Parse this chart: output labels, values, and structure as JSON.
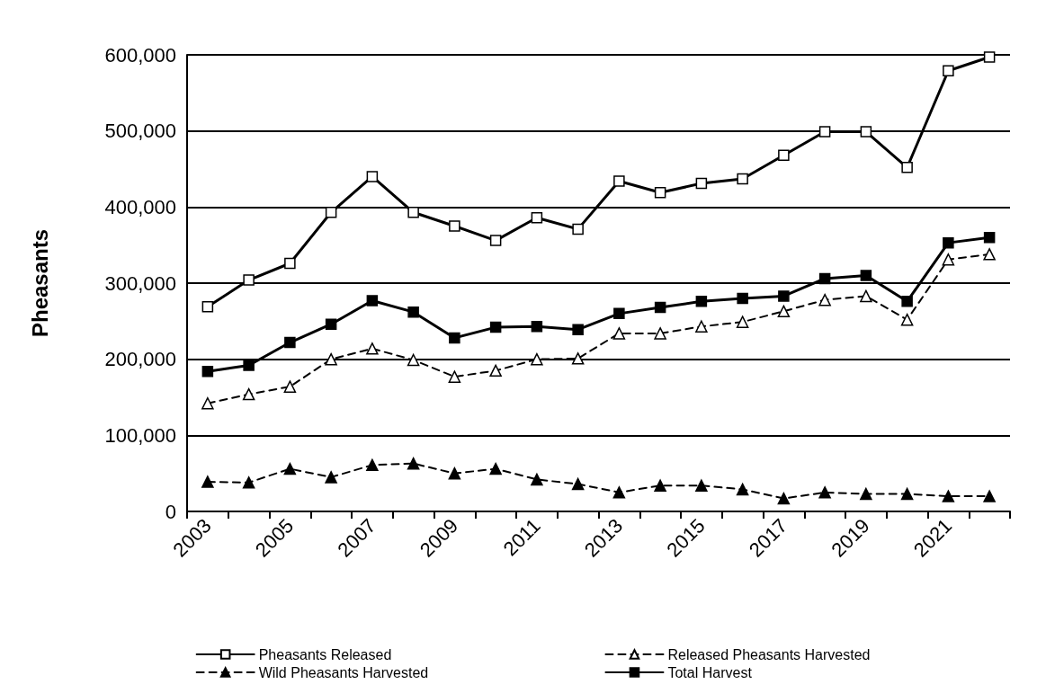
{
  "chart_data": {
    "type": "line",
    "ylabel": "Pheasants",
    "categories": [
      "2003",
      null,
      "2005",
      null,
      "2007",
      null,
      "2009",
      null,
      "2011",
      null,
      "2013",
      null,
      "2015",
      null,
      "2017",
      null,
      "2019",
      null,
      "2021",
      null
    ],
    "ylim": [
      0,
      600000
    ],
    "yticks": [
      {
        "value": 0,
        "label": "0"
      },
      {
        "value": 100000,
        "label": "100,000"
      },
      {
        "value": 200000,
        "label": "200,000"
      },
      {
        "value": 300000,
        "label": "300,000"
      },
      {
        "value": 400000,
        "label": "400,000"
      },
      {
        "value": 500000,
        "label": "500,000"
      },
      {
        "value": 600000,
        "label": "600,000"
      }
    ],
    "grid": "y",
    "legend": "bottom",
    "series": [
      {
        "name": "Pheasants Released",
        "color": "#000000",
        "marker": "square",
        "colors": [
          "#ffffff",
          "#ffffff",
          "#ffffff",
          "#ffffff",
          "#ffffff",
          "#ffffff",
          "#ffffff",
          "#ffffff",
          "#ffffff",
          "#ffffff",
          "#ffffff",
          "#ffffff",
          "#ffffff",
          "#ffffff",
          "#ffffff",
          "#ffffff",
          "#ffffff",
          "#ffffff",
          "#ffffff",
          "#ffffff"
        ],
        "line_style": "solid",
        "values": [
          269000,
          304000,
          326000,
          393000,
          440000,
          393000,
          375000,
          356000,
          386000,
          371000,
          434000,
          419000,
          431000,
          437000,
          468000,
          499000,
          499000,
          452000,
          579000,
          597000
        ]
      },
      {
        "name": "Released Pheasants Harvested",
        "color": "#000000",
        "marker": "triangle",
        "colors": [
          "#ffffff",
          "#ffffff",
          "#ffffff",
          "#ffffff",
          "#ffffff",
          "#ffffff",
          "#ffffff",
          "#ffffff",
          "#ffffff",
          "#ffffff",
          "#ffffff",
          "#ffffff",
          "#ffffff",
          "#ffffff",
          "#ffffff",
          "#ffffff",
          "#ffffff",
          "#ffffff",
          "#ffffff",
          "#ffffff"
        ],
        "line_style": "dashed",
        "values": [
          142000,
          154000,
          164000,
          200000,
          214000,
          199000,
          177000,
          185000,
          200000,
          201000,
          234000,
          234000,
          243000,
          249000,
          263000,
          278000,
          283000,
          252000,
          331000,
          338000
        ]
      },
      {
        "name": "Wild Pheasants Harvested",
        "color": "#000000",
        "marker": "triangle",
        "line_style": "dashed",
        "values": [
          39000,
          38000,
          56000,
          45000,
          61000,
          63000,
          50000,
          56000,
          42000,
          36000,
          25000,
          34000,
          34000,
          29000,
          17000,
          25000,
          23000,
          23000,
          20000,
          20000
        ]
      },
      {
        "name": "Total Harvest",
        "color": "#000000",
        "marker": "square",
        "line_style": "solid",
        "values": [
          184000,
          192000,
          222000,
          246000,
          277000,
          262000,
          228000,
          242000,
          243000,
          239000,
          260000,
          268000,
          276000,
          280000,
          283000,
          306000,
          310000,
          276000,
          353000,
          360000
        ]
      }
    ]
  }
}
